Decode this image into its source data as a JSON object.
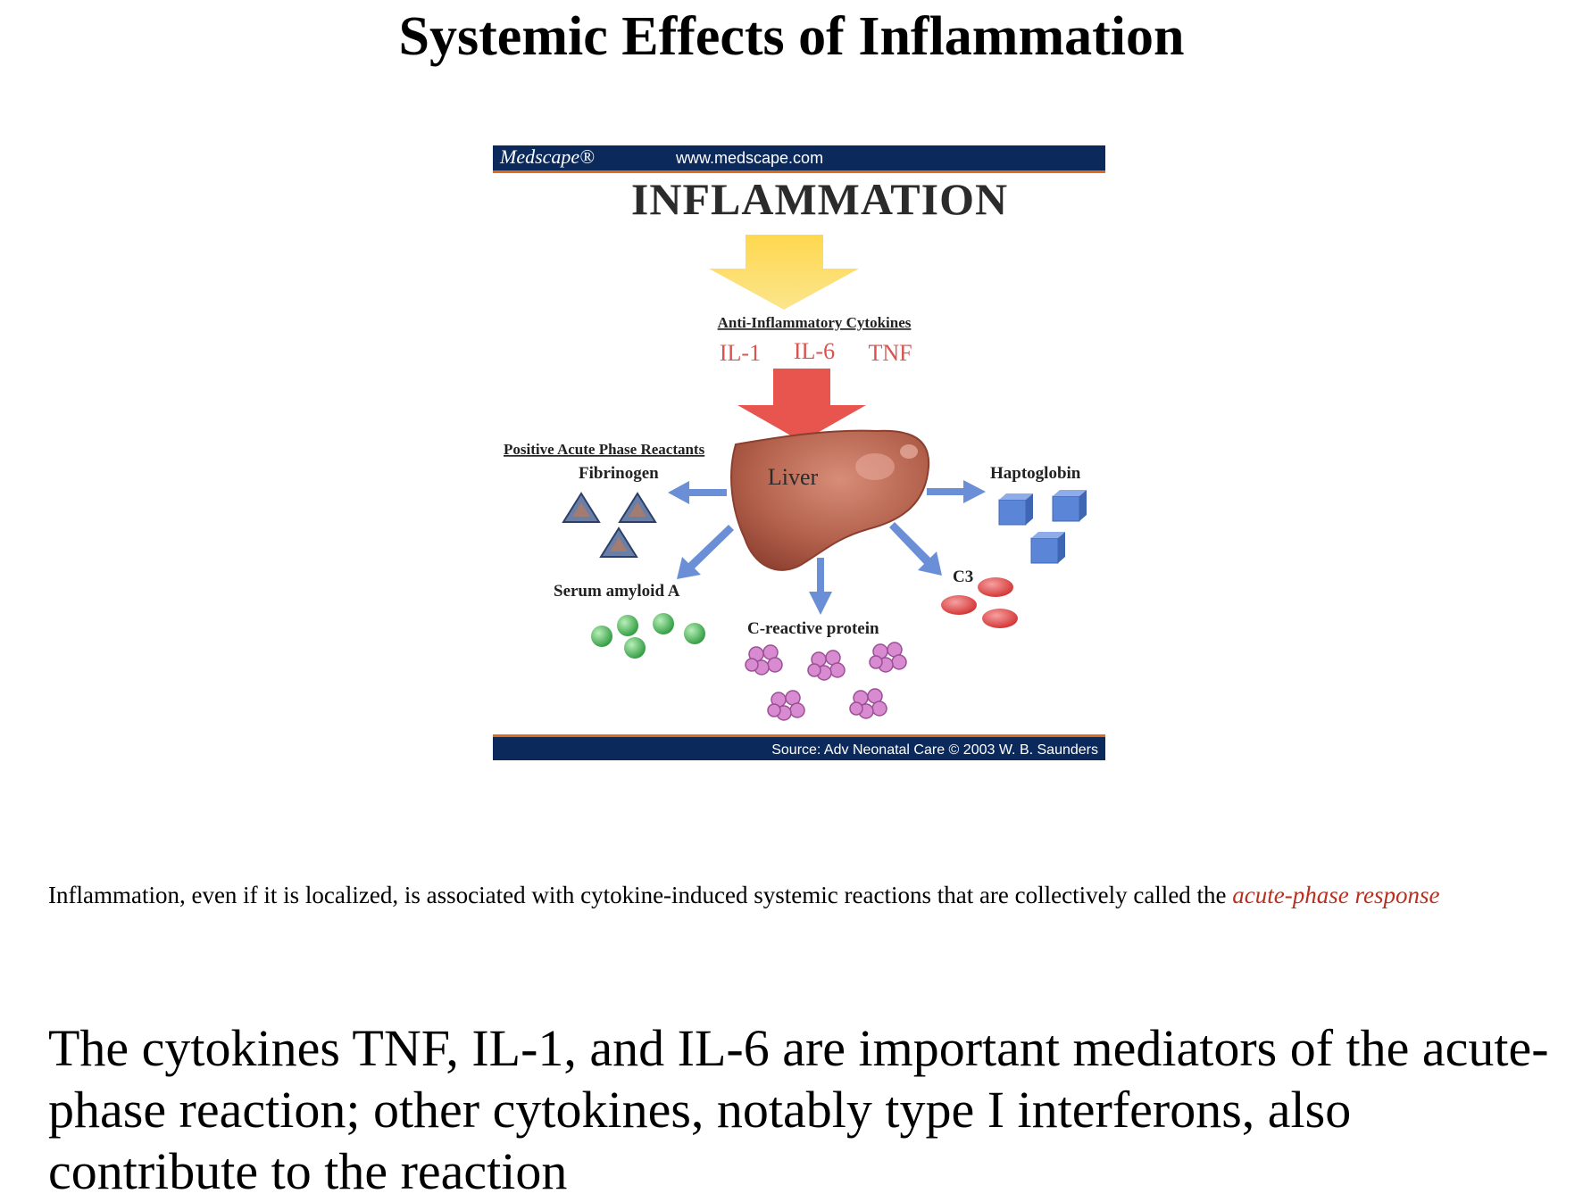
{
  "page": {
    "title": "Systemic Effects of Inflammation"
  },
  "figure": {
    "brand": "Medscape®",
    "url": "www.medscape.com",
    "heading": "INFLAMMATION",
    "cytokines_heading": "Anti-Inflammatory Cytokines",
    "cytokines": [
      "IL-1",
      "IL-6",
      "TNF"
    ],
    "organ_label": "Liver",
    "reactants_heading": "Positive Acute Phase Reactants",
    "products": {
      "fibrinogen": "Fibrinogen",
      "haptoglobin": "Haptoglobin",
      "serum_amyloid": "Serum amyloid A",
      "c3": "C3",
      "crp": "C-reactive protein"
    },
    "source": "Source: Adv Neonatal Care © 2003 W. B. Saunders",
    "colors": {
      "banner": "#0b2a5b",
      "banner_stripe": "#e06a1c",
      "yellow_arrow": "#fcd34a",
      "red_arrow": "#e8554f",
      "blue_arrow": "#6a8fd6",
      "liver": "#b2604b",
      "cytokine_text": "#d9544e",
      "green_spheres": "#46b556",
      "red_ovals": "#e24b4b",
      "pink_clusters": "#d98bd1",
      "blue_cubes": "#5b86d8"
    }
  },
  "caption": {
    "text": "Inflammation, even if it is localized, is associated with cytokine-induced systemic reactions that are collectively called the ",
    "term": "acute-phase response"
  },
  "body": {
    "text": "The cytokines TNF, IL-1, and IL-6 are important mediators of the acute-phase reaction; other cytokines, notably type I interferons, also contribute to the reaction"
  }
}
